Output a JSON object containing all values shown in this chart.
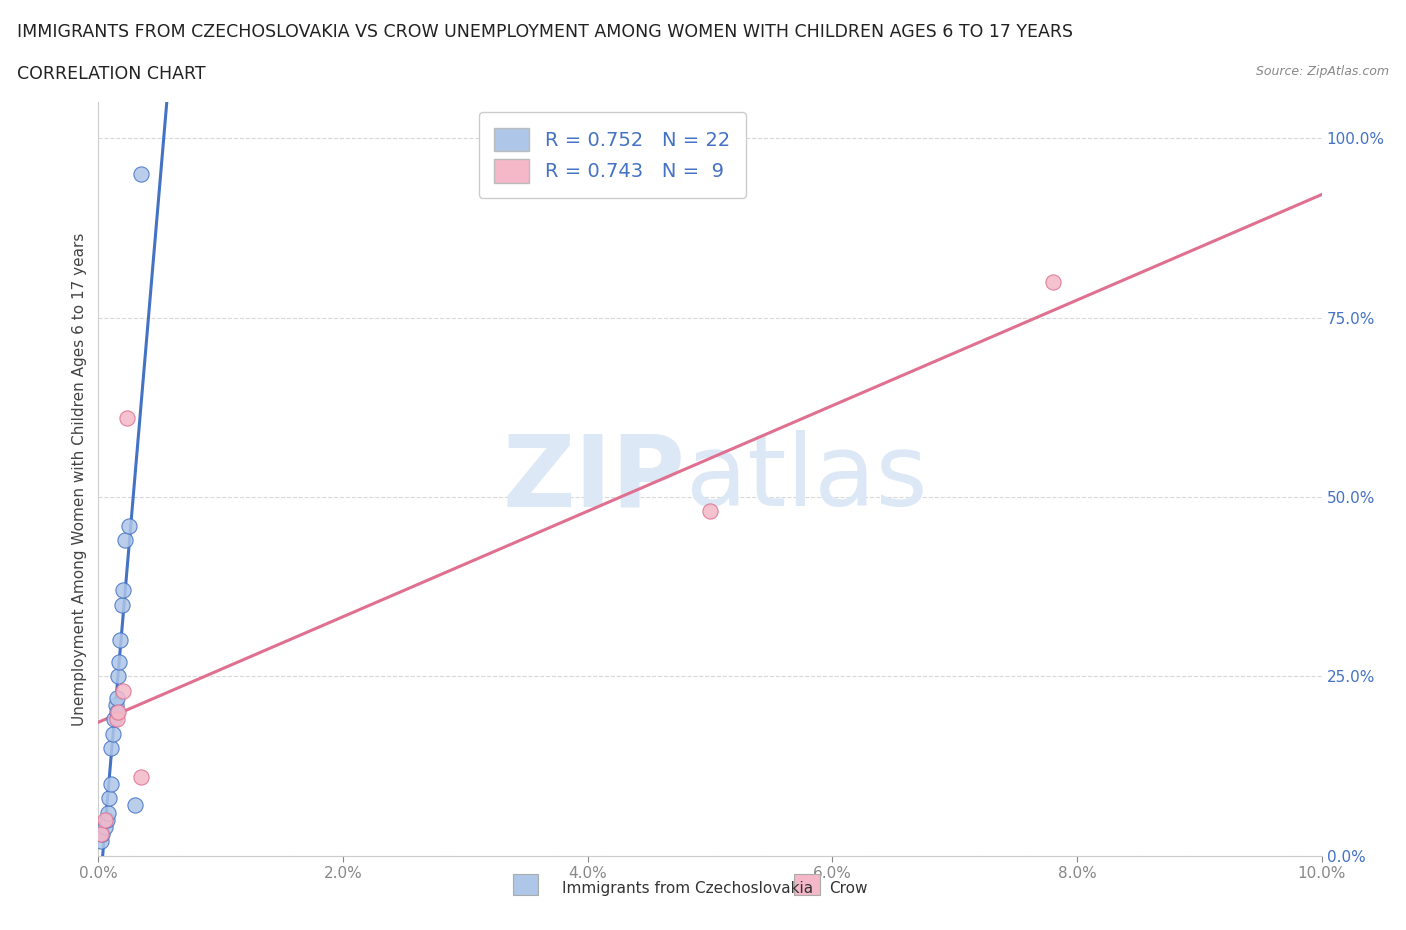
{
  "title": "IMMIGRANTS FROM CZECHOSLOVAKIA VS CROW UNEMPLOYMENT AMONG WOMEN WITH CHILDREN AGES 6 TO 17 YEARS",
  "subtitle": "CORRELATION CHART",
  "source": "Source: ZipAtlas.com",
  "xlabel": "",
  "ylabel": "Unemployment Among Women with Children Ages 6 to 17 years",
  "xlim": [
    0.0,
    0.1
  ],
  "ylim": [
    0.0,
    1.05
  ],
  "x_ticks": [
    0.0,
    0.02,
    0.04,
    0.06,
    0.08,
    0.1
  ],
  "x_tick_labels": [
    "0.0%",
    "2.0%",
    "4.0%",
    "6.0%",
    "8.0%",
    "10.0%"
  ],
  "y_ticks": [
    0.0,
    0.25,
    0.5,
    0.75,
    1.0
  ],
  "y_tick_labels": [
    "0.0%",
    "25.0%",
    "50.0%",
    "75.0%",
    "100.0%"
  ],
  "blue_color": "#aec6e8",
  "blue_line_color": "#4472c4",
  "pink_color": "#f4b8c8",
  "pink_line_color": "#e07090",
  "legend_text_color": "#4472c4",
  "R_blue": 0.752,
  "N_blue": 22,
  "R_pink": 0.743,
  "N_pink": 9,
  "blue_scatter_x": [
    0.0002,
    0.0003,
    0.0005,
    0.0007,
    0.0008,
    0.0009,
    0.001,
    0.001,
    0.0012,
    0.0013,
    0.0014,
    0.0015,
    0.0015,
    0.0016,
    0.0017,
    0.0018,
    0.0019,
    0.002,
    0.0022,
    0.0025,
    0.003,
    0.0035
  ],
  "blue_scatter_y": [
    0.02,
    0.03,
    0.04,
    0.05,
    0.06,
    0.08,
    0.1,
    0.15,
    0.17,
    0.19,
    0.21,
    0.2,
    0.22,
    0.25,
    0.27,
    0.3,
    0.35,
    0.37,
    0.44,
    0.46,
    0.07,
    0.95
  ],
  "pink_scatter_x": [
    0.0002,
    0.0005,
    0.0015,
    0.0016,
    0.002,
    0.0023,
    0.0035,
    0.05,
    0.078
  ],
  "pink_scatter_y": [
    0.03,
    0.05,
    0.19,
    0.2,
    0.23,
    0.61,
    0.11,
    0.48,
    0.8
  ],
  "watermark_zip": "ZIP",
  "watermark_atlas": "atlas",
  "background_color": "#ffffff",
  "grid_color": "#d8d8d8"
}
